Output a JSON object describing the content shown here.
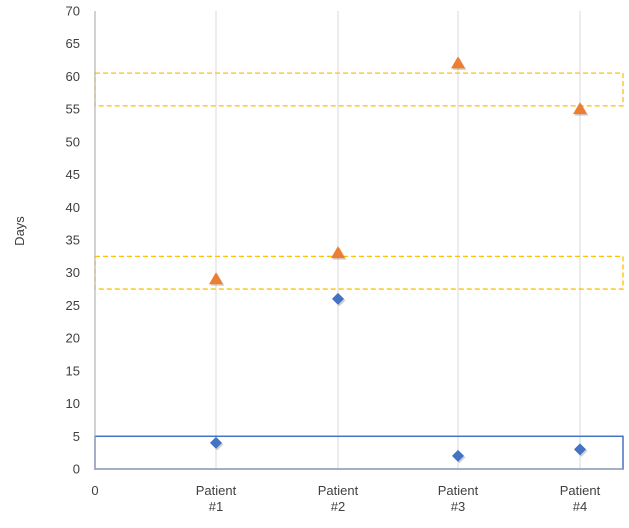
{
  "chart_data": {
    "type": "scatter",
    "ylabel": "Days",
    "xlabel": "",
    "ylim": [
      0,
      70
    ],
    "ytick_step": 5,
    "grid": "vertical",
    "x_origin_label": "0",
    "categories": [
      [
        "Patient",
        "#1"
      ],
      [
        "Patient",
        "#2"
      ],
      [
        "Patient",
        "#3"
      ],
      [
        "Patient",
        "#4"
      ]
    ],
    "series": [
      {
        "marker": "diamond",
        "color": "#4472C4",
        "values": [
          4,
          26,
          2,
          3
        ]
      },
      {
        "marker": "triangle",
        "color": "#ED7D31",
        "values": [
          29,
          33,
          62,
          55
        ]
      }
    ],
    "bands": [
      {
        "y0": 0,
        "y1": 5,
        "style": "solid",
        "color": "#4472C4"
      },
      {
        "y0": 27.5,
        "y1": 32.5,
        "style": "dashed",
        "color": "#FFC000"
      },
      {
        "y0": 55.5,
        "y1": 60.5,
        "style": "dashed",
        "color": "#FFC000"
      }
    ],
    "colors": {
      "axis": "#A6A6A6",
      "grid": "#D9D9D9",
      "text": "#404040"
    }
  }
}
